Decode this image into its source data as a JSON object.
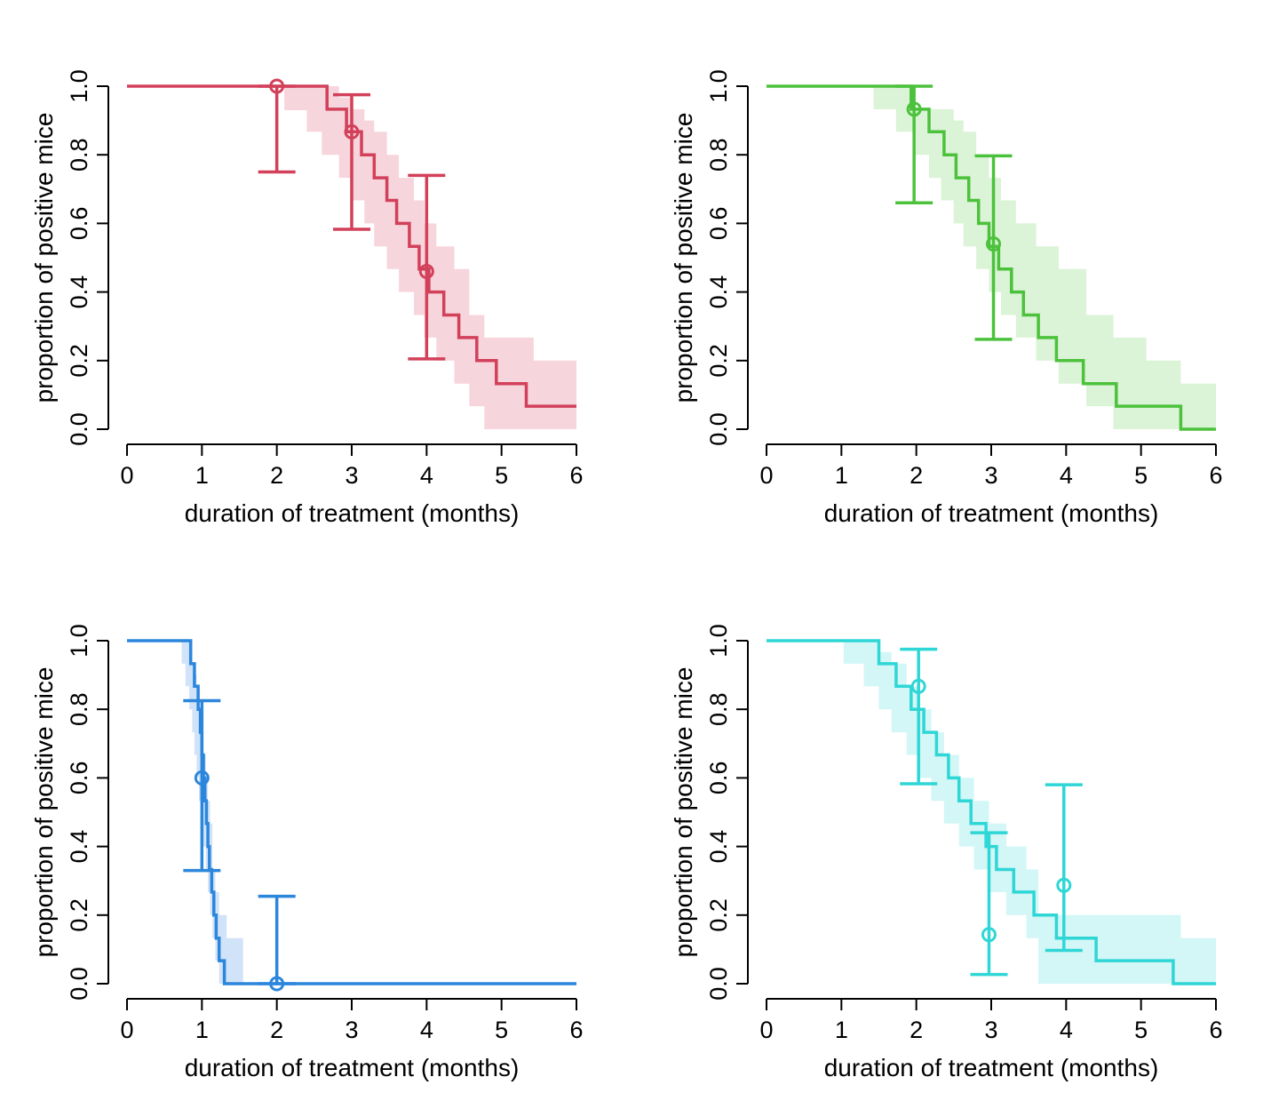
{
  "figure": {
    "panels": 4,
    "layout": "2x2"
  },
  "chart_data": [
    {
      "type": "line",
      "step": true,
      "title": "",
      "xlabel": "duration of treatment (months)",
      "ylabel": "proportion of positive mice",
      "xlim": [
        0,
        6
      ],
      "ylim": [
        0,
        1
      ],
      "xticks": [
        "0",
        "1",
        "2",
        "3",
        "4",
        "5",
        "6"
      ],
      "yticks": [
        "0.0",
        "0.2",
        "0.4",
        "0.6",
        "0.8",
        "1.0"
      ],
      "color": "#d2405a",
      "band_color": "#f7d5dc",
      "steps": [
        [
          0,
          1.0
        ],
        [
          2.67,
          0.933
        ],
        [
          2.93,
          0.867
        ],
        [
          3.13,
          0.8
        ],
        [
          3.3,
          0.733
        ],
        [
          3.47,
          0.667
        ],
        [
          3.6,
          0.6
        ],
        [
          3.77,
          0.533
        ],
        [
          3.9,
          0.467
        ],
        [
          4.03,
          0.4
        ],
        [
          4.23,
          0.333
        ],
        [
          4.43,
          0.267
        ],
        [
          4.67,
          0.2
        ],
        [
          4.93,
          0.133
        ],
        [
          5.33,
          0.067
        ],
        [
          6.0,
          0.067
        ]
      ],
      "band": [
        [
          0,
          1.0,
          1.0
        ],
        [
          2.1,
          0.93,
          1.0
        ],
        [
          2.4,
          0.867,
          1.0
        ],
        [
          2.6,
          0.8,
          1.0
        ],
        [
          2.83,
          0.733,
          0.967
        ],
        [
          3.0,
          0.667,
          0.933
        ],
        [
          3.17,
          0.6,
          0.9
        ],
        [
          3.3,
          0.533,
          0.867
        ],
        [
          3.47,
          0.467,
          0.8
        ],
        [
          3.63,
          0.4,
          0.733
        ],
        [
          3.83,
          0.333,
          0.667
        ],
        [
          3.97,
          0.267,
          0.6
        ],
        [
          4.13,
          0.2,
          0.533
        ],
        [
          4.37,
          0.133,
          0.467
        ],
        [
          4.57,
          0.067,
          0.333
        ],
        [
          4.77,
          0.0,
          0.267
        ],
        [
          5.07,
          0.0,
          0.267
        ],
        [
          5.43,
          0.0,
          0.2
        ],
        [
          6.0,
          0.0,
          0.2
        ]
      ],
      "points": [
        {
          "x": 2.0,
          "y": 1.0,
          "lo": 0.75,
          "hi": 1.0
        },
        {
          "x": 3.0,
          "y": 0.867,
          "lo": 0.583,
          "hi": 0.975
        },
        {
          "x": 4.0,
          "y": 0.46,
          "lo": 0.205,
          "hi": 0.74
        }
      ]
    },
    {
      "type": "line",
      "step": true,
      "title": "",
      "xlabel": "duration of treatment (months)",
      "ylabel": "proportion of positive mice",
      "xlim": [
        0,
        6
      ],
      "ylim": [
        0,
        1
      ],
      "xticks": [
        "0",
        "1",
        "2",
        "3",
        "4",
        "5",
        "6"
      ],
      "yticks": [
        "0.0",
        "0.2",
        "0.4",
        "0.6",
        "0.8",
        "1.0"
      ],
      "color": "#4cc23c",
      "band_color": "#dbf3d6",
      "steps": [
        [
          0,
          1.0
        ],
        [
          1.93,
          0.933
        ],
        [
          2.17,
          0.867
        ],
        [
          2.37,
          0.8
        ],
        [
          2.53,
          0.733
        ],
        [
          2.7,
          0.667
        ],
        [
          2.83,
          0.6
        ],
        [
          2.97,
          0.533
        ],
        [
          3.1,
          0.467
        ],
        [
          3.27,
          0.4
        ],
        [
          3.43,
          0.333
        ],
        [
          3.63,
          0.267
        ],
        [
          3.87,
          0.2
        ],
        [
          4.23,
          0.133
        ],
        [
          4.67,
          0.067
        ],
        [
          5.53,
          0.0
        ],
        [
          6.0,
          0.0
        ]
      ],
      "band": [
        [
          0,
          1.0,
          1.0
        ],
        [
          1.43,
          0.933,
          1.0
        ],
        [
          1.73,
          0.867,
          1.0
        ],
        [
          1.97,
          0.8,
          0.933
        ],
        [
          2.17,
          0.733,
          0.933
        ],
        [
          2.33,
          0.667,
          0.933
        ],
        [
          2.5,
          0.6,
          0.9
        ],
        [
          2.63,
          0.533,
          0.867
        ],
        [
          2.8,
          0.467,
          0.8
        ],
        [
          2.97,
          0.4,
          0.733
        ],
        [
          3.13,
          0.333,
          0.667
        ],
        [
          3.33,
          0.267,
          0.6
        ],
        [
          3.6,
          0.2,
          0.533
        ],
        [
          3.9,
          0.133,
          0.467
        ],
        [
          4.27,
          0.067,
          0.333
        ],
        [
          4.63,
          0.0,
          0.267
        ],
        [
          5.07,
          0.0,
          0.2
        ],
        [
          5.53,
          0.0,
          0.133
        ],
        [
          6.0,
          0.0,
          0.133
        ]
      ],
      "points": [
        {
          "x": 1.97,
          "y": 0.933,
          "lo": 0.66,
          "hi": 1.0
        },
        {
          "x": 3.03,
          "y": 0.54,
          "lo": 0.262,
          "hi": 0.797
        }
      ]
    },
    {
      "type": "line",
      "step": true,
      "title": "",
      "xlabel": "duration of treatment (months)",
      "ylabel": "proportion of positive mice",
      "xlim": [
        0,
        6
      ],
      "ylim": [
        0,
        1
      ],
      "xticks": [
        "0",
        "1",
        "2",
        "3",
        "4",
        "5",
        "6"
      ],
      "yticks": [
        "0.0",
        "0.2",
        "0.4",
        "0.6",
        "0.8",
        "1.0"
      ],
      "color": "#2b86dc",
      "band_color": "#d1e3f8",
      "steps": [
        [
          0,
          1.0
        ],
        [
          0.85,
          0.933
        ],
        [
          0.9,
          0.867
        ],
        [
          0.95,
          0.8
        ],
        [
          0.98,
          0.733
        ],
        [
          1.0,
          0.667
        ],
        [
          1.02,
          0.6
        ],
        [
          1.04,
          0.533
        ],
        [
          1.06,
          0.467
        ],
        [
          1.08,
          0.4
        ],
        [
          1.1,
          0.333
        ],
        [
          1.13,
          0.267
        ],
        [
          1.16,
          0.2
        ],
        [
          1.19,
          0.133
        ],
        [
          1.23,
          0.067
        ],
        [
          1.3,
          0.0
        ],
        [
          6.0,
          0.0
        ]
      ],
      "band": [
        [
          0,
          1.0,
          1.0
        ],
        [
          0.73,
          0.933,
          1.0
        ],
        [
          0.78,
          0.867,
          1.0
        ],
        [
          0.83,
          0.8,
          0.967
        ],
        [
          0.87,
          0.733,
          0.933
        ],
        [
          0.9,
          0.667,
          0.9
        ],
        [
          0.93,
          0.6,
          0.867
        ],
        [
          0.96,
          0.533,
          0.8
        ],
        [
          0.99,
          0.467,
          0.733
        ],
        [
          1.02,
          0.4,
          0.667
        ],
        [
          1.05,
          0.333,
          0.6
        ],
        [
          1.08,
          0.267,
          0.533
        ],
        [
          1.11,
          0.2,
          0.467
        ],
        [
          1.14,
          0.133,
          0.333
        ],
        [
          1.18,
          0.067,
          0.267
        ],
        [
          1.23,
          0.0,
          0.2
        ],
        [
          1.33,
          0.0,
          0.133
        ],
        [
          1.55,
          0.0,
          0.0
        ],
        [
          6.0,
          0.0,
          0.0
        ]
      ],
      "points": [
        {
          "x": 1.0,
          "y": 0.6,
          "lo": 0.33,
          "hi": 0.825
        },
        {
          "x": 2.0,
          "y": 0.0,
          "lo": 0.0,
          "hi": 0.255
        }
      ]
    },
    {
      "type": "line",
      "step": true,
      "title": "",
      "xlabel": "duration of treatment (months)",
      "ylabel": "proportion of positive mice",
      "xlim": [
        0,
        6
      ],
      "ylim": [
        0,
        1
      ],
      "xticks": [
        "0",
        "1",
        "2",
        "3",
        "4",
        "5",
        "6"
      ],
      "yticks": [
        "0.0",
        "0.2",
        "0.4",
        "0.6",
        "0.8",
        "1.0"
      ],
      "color": "#2fd6d6",
      "band_color": "#d3f6f6",
      "steps": [
        [
          0,
          1.0
        ],
        [
          1.5,
          0.933
        ],
        [
          1.73,
          0.867
        ],
        [
          1.93,
          0.8
        ],
        [
          2.1,
          0.733
        ],
        [
          2.27,
          0.667
        ],
        [
          2.43,
          0.6
        ],
        [
          2.57,
          0.533
        ],
        [
          2.73,
          0.467
        ],
        [
          2.93,
          0.4
        ],
        [
          3.07,
          0.333
        ],
        [
          3.3,
          0.267
        ],
        [
          3.57,
          0.2
        ],
        [
          3.87,
          0.133
        ],
        [
          4.4,
          0.067
        ],
        [
          5.43,
          0.0
        ],
        [
          6.0,
          0.0
        ]
      ],
      "band": [
        [
          0,
          1.0,
          1.0
        ],
        [
          1.03,
          0.933,
          1.0
        ],
        [
          1.3,
          0.867,
          1.0
        ],
        [
          1.5,
          0.8,
          0.967
        ],
        [
          1.67,
          0.733,
          0.933
        ],
        [
          1.87,
          0.667,
          0.867
        ],
        [
          2.03,
          0.6,
          0.8
        ],
        [
          2.2,
          0.533,
          0.733
        ],
        [
          2.37,
          0.467,
          0.667
        ],
        [
          2.57,
          0.4,
          0.6
        ],
        [
          2.77,
          0.333,
          0.533
        ],
        [
          2.97,
          0.267,
          0.467
        ],
        [
          3.2,
          0.2,
          0.4
        ],
        [
          3.47,
          0.133,
          0.333
        ],
        [
          3.63,
          0.0,
          0.2
        ],
        [
          4.87,
          0.0,
          0.2
        ],
        [
          5.53,
          0.0,
          0.133
        ],
        [
          6.0,
          0.0,
          0.133
        ]
      ],
      "points": [
        {
          "x": 2.03,
          "y": 0.867,
          "lo": 0.583,
          "hi": 0.975
        },
        {
          "x": 2.97,
          "y": 0.143,
          "lo": 0.027,
          "hi": 0.44
        },
        {
          "x": 3.97,
          "y": 0.287,
          "lo": 0.097,
          "hi": 0.58
        }
      ]
    }
  ]
}
